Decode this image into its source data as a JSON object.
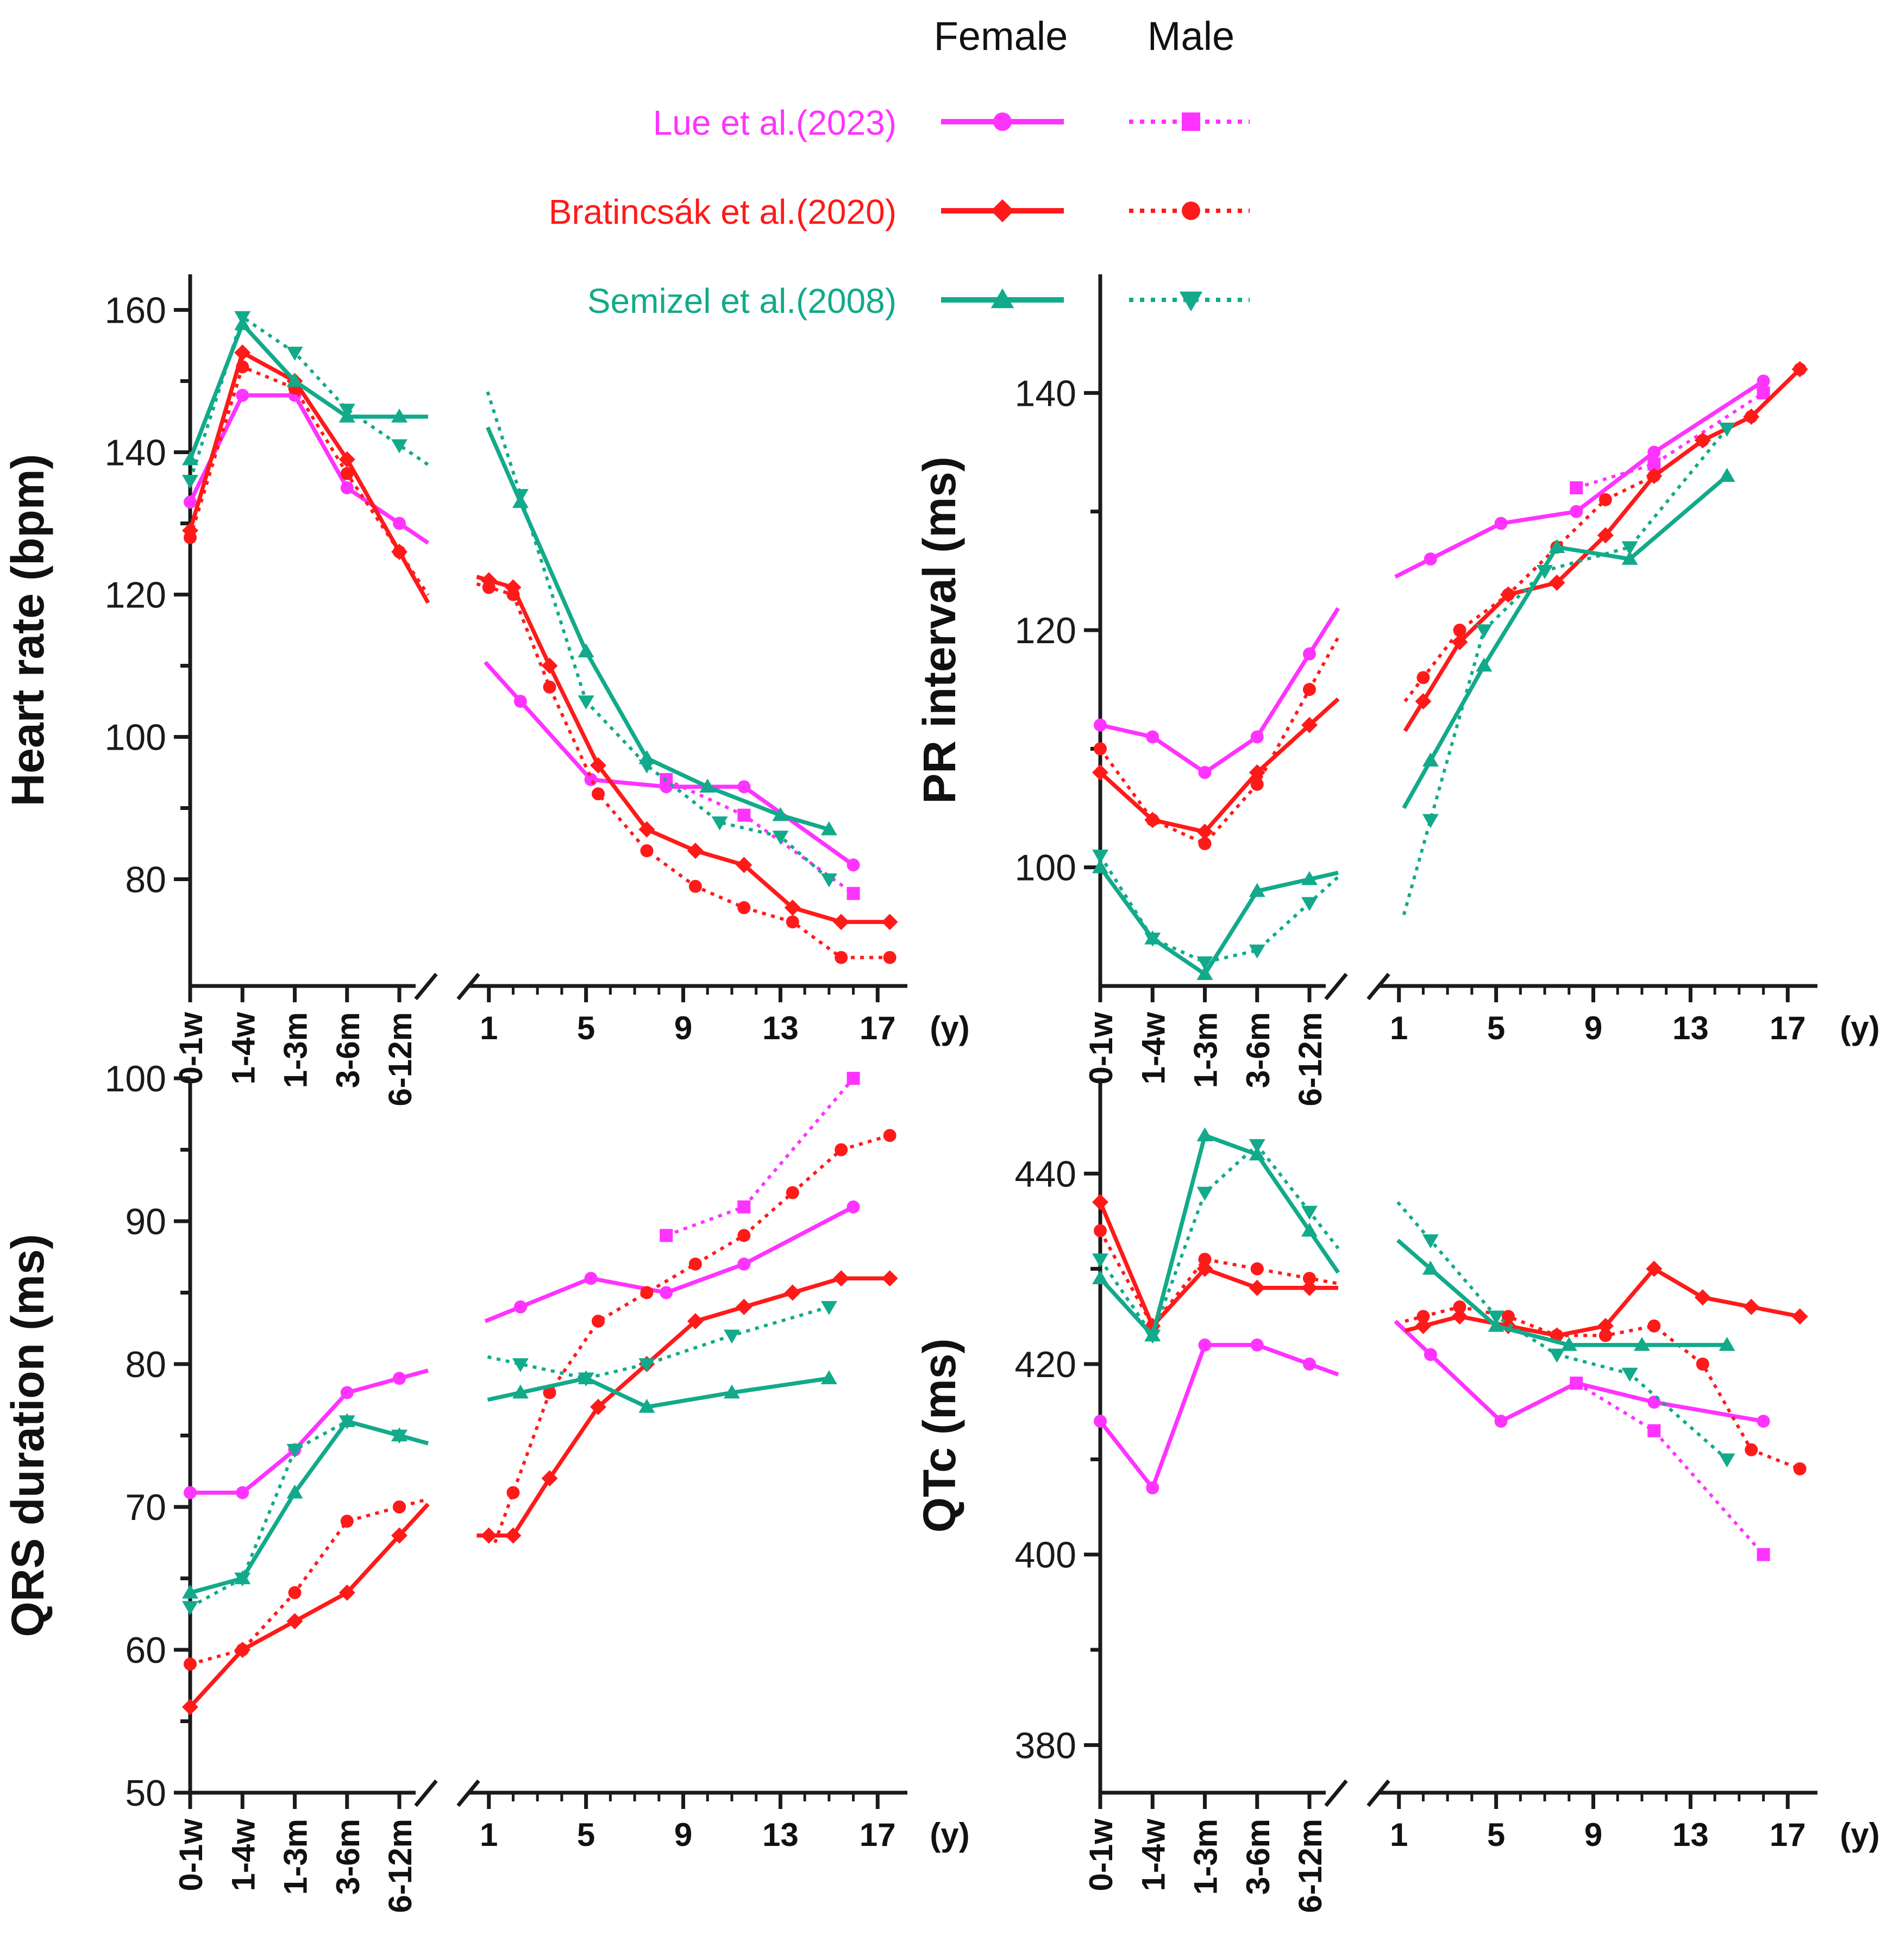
{
  "legend": {
    "col_female": "Female",
    "col_male": "Male",
    "entries": [
      {
        "study": "Lue et al.(2023)",
        "color": "#ff33ff",
        "female_marker": "circle",
        "male_marker": "square"
      },
      {
        "study": "Bratincsák et al.(2020)",
        "color": "#ff1a1a",
        "female_marker": "diamond",
        "male_marker": "circle"
      },
      {
        "study": "Semizel et al.(2008)",
        "color": "#12aa8a",
        "female_marker": "triangle-up",
        "male_marker": "triangle-down"
      }
    ]
  },
  "year_axis_unit": "(y)",
  "infant_categories": [
    "0-1w",
    "1-4w",
    "1-3m",
    "3-6m",
    "6-12m"
  ],
  "year_ticks": [
    "1",
    "5",
    "9",
    "13",
    "17"
  ],
  "chart_data": [
    {
      "type": "line",
      "ylabel": "Heart rate (bpm)",
      "ylim": [
        65,
        165
      ],
      "yticks": [
        80,
        100,
        120,
        140,
        160
      ],
      "xlim_years": [
        0,
        18
      ],
      "series": [
        {
          "name": "Lue et al.(2023)",
          "sex": "Female",
          "color": "#ff33ff",
          "marker": "circle",
          "dotted": false,
          "infant": [
            133,
            148,
            148,
            135,
            130
          ],
          "years": [
            [
              2.3,
              105
            ],
            [
              5.2,
              94
            ],
            [
              8.3,
              93
            ],
            [
              11.5,
              93
            ],
            [
              16,
              82
            ]
          ]
        },
        {
          "name": "Lue et al.(2023)",
          "sex": "Male",
          "color": "#ff33ff",
          "marker": "square",
          "dotted": true,
          "infant": [],
          "years": [
            [
              8.3,
              94
            ],
            [
              11.5,
              89
            ],
            [
              16,
              78
            ]
          ]
        },
        {
          "name": "Bratincsák et al.(2020)",
          "sex": "Female",
          "color": "#ff1a1a",
          "marker": "diamond",
          "dotted": false,
          "infant": [
            129,
            154,
            150,
            139,
            126
          ],
          "years": [
            [
              1,
              122
            ],
            [
              2,
              121
            ],
            [
              3.5,
              110
            ],
            [
              5.5,
              96
            ],
            [
              7.5,
              87
            ],
            [
              9.5,
              84
            ],
            [
              11.5,
              82
            ],
            [
              13.5,
              76
            ],
            [
              15.5,
              74
            ],
            [
              17.5,
              74
            ]
          ]
        },
        {
          "name": "Bratincsák et al.(2020)",
          "sex": "Male",
          "color": "#ff1a1a",
          "marker": "circle",
          "dotted": true,
          "infant": [
            128,
            152,
            149,
            137,
            126
          ],
          "years": [
            [
              1,
              121
            ],
            [
              2,
              120
            ],
            [
              3.5,
              107
            ],
            [
              5.5,
              92
            ],
            [
              7.5,
              84
            ],
            [
              9.5,
              79
            ],
            [
              11.5,
              76
            ],
            [
              13.5,
              74
            ],
            [
              15.5,
              69
            ],
            [
              17.5,
              69
            ]
          ]
        },
        {
          "name": "Semizel et al.(2008)",
          "sex": "Female",
          "color": "#12aa8a",
          "marker": "triangle-up",
          "dotted": false,
          "infant": [
            139,
            158,
            150,
            145,
            145
          ],
          "years": [
            [
              2.3,
              133
            ],
            [
              5,
              112
            ],
            [
              7.5,
              97
            ],
            [
              10,
              93
            ],
            [
              13,
              89
            ],
            [
              15,
              87
            ]
          ]
        },
        {
          "name": "Semizel et al.(2008)",
          "sex": "Male",
          "color": "#12aa8a",
          "marker": "triangle-down",
          "dotted": true,
          "infant": [
            136,
            159,
            154,
            146,
            141
          ],
          "years": [
            [
              2.3,
              134
            ],
            [
              5,
              105
            ],
            [
              7.5,
              96
            ],
            [
              10.5,
              88
            ],
            [
              13,
              86
            ],
            [
              15,
              80
            ]
          ]
        }
      ]
    },
    {
      "type": "line",
      "ylabel": "PR interval (ms)",
      "ylim": [
        90,
        150
      ],
      "yticks": [
        100,
        120,
        140
      ],
      "xlim_years": [
        0,
        18
      ],
      "series": [
        {
          "name": "Lue et al.(2023)",
          "sex": "Female",
          "color": "#ff33ff",
          "marker": "circle",
          "dotted": false,
          "infant": [
            112,
            111,
            108,
            111,
            118
          ],
          "years": [
            [
              2.3,
              126
            ],
            [
              5.2,
              129
            ],
            [
              8.3,
              130
            ],
            [
              11.5,
              135
            ],
            [
              16,
              141
            ]
          ]
        },
        {
          "name": "Lue et al.(2023)",
          "sex": "Male",
          "color": "#ff33ff",
          "marker": "square",
          "dotted": true,
          "infant": [],
          "years": [
            [
              8.3,
              132
            ],
            [
              11.5,
              134
            ],
            [
              16,
              140
            ]
          ]
        },
        {
          "name": "Bratincsák et al.(2020)",
          "sex": "Female",
          "color": "#ff1a1a",
          "marker": "diamond",
          "dotted": false,
          "infant": [
            108,
            104,
            103,
            108,
            112
          ],
          "years": [
            [
              2,
              114
            ],
            [
              3.5,
              119
            ],
            [
              5.5,
              123
            ],
            [
              7.5,
              124
            ],
            [
              9.5,
              128
            ],
            [
              11.5,
              133
            ],
            [
              13.5,
              136
            ],
            [
              15.5,
              138
            ],
            [
              17.5,
              142
            ]
          ]
        },
        {
          "name": "Bratincsák et al.(2020)",
          "sex": "Male",
          "color": "#ff1a1a",
          "marker": "circle",
          "dotted": true,
          "infant": [
            110,
            104,
            102,
            107,
            115
          ],
          "years": [
            [
              2,
              116
            ],
            [
              3.5,
              120
            ],
            [
              5.5,
              123
            ],
            [
              7.5,
              127
            ],
            [
              9.5,
              131
            ],
            [
              11.5,
              133
            ],
            [
              13.5,
              136
            ],
            [
              15.5,
              138
            ],
            [
              17.5,
              142
            ]
          ]
        },
        {
          "name": "Semizel et al.(2008)",
          "sex": "Female",
          "color": "#12aa8a",
          "marker": "triangle-up",
          "dotted": false,
          "infant": [
            100,
            94,
            91,
            98,
            99
          ],
          "years": [
            [
              2.3,
              109
            ],
            [
              4.5,
              117
            ],
            [
              7.5,
              127
            ],
            [
              10.5,
              126
            ],
            [
              14.5,
              133
            ]
          ]
        },
        {
          "name": "Semizel et al.(2008)",
          "sex": "Male",
          "color": "#12aa8a",
          "marker": "triangle-down",
          "dotted": true,
          "infant": [
            101,
            94,
            92,
            93,
            97
          ],
          "years": [
            [
              2.3,
              104
            ],
            [
              4.5,
              120
            ],
            [
              7,
              125
            ],
            [
              10.5,
              127
            ],
            [
              14.5,
              137
            ]
          ]
        }
      ]
    },
    {
      "type": "line",
      "ylabel": "QRS duration (ms)",
      "ylim": [
        50,
        100
      ],
      "yticks": [
        50,
        60,
        70,
        80,
        90,
        100
      ],
      "xlim_years": [
        0,
        18
      ],
      "series": [
        {
          "name": "Lue et al.(2023)",
          "sex": "Female",
          "color": "#ff33ff",
          "marker": "circle",
          "dotted": false,
          "infant": [
            71,
            71,
            74,
            78,
            79
          ],
          "years": [
            [
              2.3,
              84
            ],
            [
              5.2,
              86
            ],
            [
              8.3,
              85
            ],
            [
              11.5,
              87
            ],
            [
              16,
              91
            ]
          ]
        },
        {
          "name": "Lue et al.(2023)",
          "sex": "Male",
          "color": "#ff33ff",
          "marker": "square",
          "dotted": true,
          "infant": [],
          "years": [
            [
              8.3,
              89
            ],
            [
              11.5,
              91
            ],
            [
              16,
              100
            ]
          ]
        },
        {
          "name": "Bratincsák et al.(2020)",
          "sex": "Female",
          "color": "#ff1a1a",
          "marker": "diamond",
          "dotted": false,
          "infant": [
            56,
            60,
            62,
            64,
            68
          ],
          "years": [
            [
              1,
              68
            ],
            [
              2,
              68
            ],
            [
              3.5,
              72
            ],
            [
              5.5,
              77
            ],
            [
              7.5,
              80
            ],
            [
              9.5,
              83
            ],
            [
              11.5,
              84
            ],
            [
              13.5,
              85
            ],
            [
              15.5,
              86
            ],
            [
              17.5,
              86
            ]
          ]
        },
        {
          "name": "Bratincsák et al.(2020)",
          "sex": "Male",
          "color": "#ff1a1a",
          "marker": "circle",
          "dotted": true,
          "infant": [
            59,
            60,
            64,
            69,
            70
          ],
          "years": [
            [
              2,
              71
            ],
            [
              3.5,
              78
            ],
            [
              5.5,
              83
            ],
            [
              7.5,
              85
            ],
            [
              9.5,
              87
            ],
            [
              11.5,
              89
            ],
            [
              13.5,
              92
            ],
            [
              15.5,
              95
            ],
            [
              17.5,
              96
            ]
          ]
        },
        {
          "name": "Semizel et al.(2008)",
          "sex": "Female",
          "color": "#12aa8a",
          "marker": "triangle-up",
          "dotted": false,
          "infant": [
            64,
            65,
            71,
            76,
            75
          ],
          "years": [
            [
              2.3,
              78
            ],
            [
              5,
              79
            ],
            [
              7.5,
              77
            ],
            [
              11,
              78
            ],
            [
              15,
              79
            ]
          ]
        },
        {
          "name": "Semizel et al.(2008)",
          "sex": "Male",
          "color": "#12aa8a",
          "marker": "triangle-down",
          "dotted": true,
          "infant": [
            63,
            65,
            74,
            76,
            75
          ],
          "years": [
            [
              2.3,
              80
            ],
            [
              5,
              79
            ],
            [
              7.5,
              80
            ],
            [
              11,
              82
            ],
            [
              15,
              84
            ]
          ]
        }
      ]
    },
    {
      "type": "line",
      "ylabel": "QTc (ms)",
      "ylim": [
        375,
        450
      ],
      "yticks": [
        380,
        400,
        420,
        440
      ],
      "xlim_years": [
        0,
        18
      ],
      "series": [
        {
          "name": "Lue et al.(2023)",
          "sex": "Female",
          "color": "#ff33ff",
          "marker": "circle",
          "dotted": false,
          "infant": [
            414,
            407,
            422,
            422,
            420
          ],
          "years": [
            [
              2.3,
              421
            ],
            [
              5.2,
              414
            ],
            [
              8.3,
              418
            ],
            [
              11.5,
              416
            ],
            [
              16,
              414
            ]
          ]
        },
        {
          "name": "Lue et al.(2023)",
          "sex": "Male",
          "color": "#ff33ff",
          "marker": "square",
          "dotted": true,
          "infant": [],
          "years": [
            [
              8.3,
              418
            ],
            [
              11.5,
              413
            ],
            [
              16,
              400
            ]
          ]
        },
        {
          "name": "Bratincsák et al.(2020)",
          "sex": "Female",
          "color": "#ff1a1a",
          "marker": "diamond",
          "dotted": false,
          "infant": [
            437,
            424,
            430,
            428,
            428
          ],
          "years": [
            [
              2,
              424
            ],
            [
              3.5,
              425
            ],
            [
              5.5,
              424
            ],
            [
              7.5,
              423
            ],
            [
              9.5,
              424
            ],
            [
              11.5,
              430
            ],
            [
              13.5,
              427
            ],
            [
              15.5,
              426
            ],
            [
              17.5,
              425
            ]
          ]
        },
        {
          "name": "Bratincsák et al.(2020)",
          "sex": "Male",
          "color": "#ff1a1a",
          "marker": "circle",
          "dotted": true,
          "infant": [
            434,
            424,
            431,
            430,
            429
          ],
          "years": [
            [
              2,
              425
            ],
            [
              3.5,
              426
            ],
            [
              5.5,
              425
            ],
            [
              7.5,
              423
            ],
            [
              9.5,
              423
            ],
            [
              11.5,
              424
            ],
            [
              13.5,
              420
            ],
            [
              15.5,
              411
            ],
            [
              17.5,
              409
            ]
          ]
        },
        {
          "name": "Semizel et al.(2008)",
          "sex": "Female",
          "color": "#12aa8a",
          "marker": "triangle-up",
          "dotted": false,
          "infant": [
            429,
            423,
            444,
            442,
            434
          ],
          "years": [
            [
              2.3,
              430
            ],
            [
              5,
              424
            ],
            [
              8,
              422
            ],
            [
              11,
              422
            ],
            [
              14.5,
              422
            ]
          ]
        },
        {
          "name": "Semizel et al.(2008)",
          "sex": "Male",
          "color": "#12aa8a",
          "marker": "triangle-down",
          "dotted": true,
          "infant": [
            431,
            423,
            438,
            443,
            436
          ],
          "years": [
            [
              2.3,
              433
            ],
            [
              5,
              425
            ],
            [
              7.5,
              421
            ],
            [
              10.5,
              419
            ],
            [
              14.5,
              410
            ]
          ]
        }
      ]
    }
  ]
}
